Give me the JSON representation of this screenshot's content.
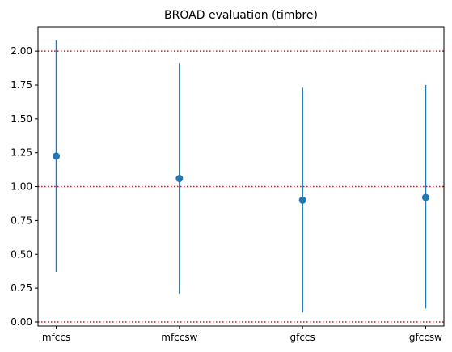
{
  "chart_data": {
    "type": "scatter",
    "title": "BROAD evaluation (timbre)",
    "xlabel": "",
    "ylabel": "",
    "categories": [
      "mfccs",
      "mfccsw",
      "gfccs",
      "gfccsw"
    ],
    "series": [
      {
        "values": [
          1.225,
          1.06,
          0.9,
          0.92
        ],
        "error_low": [
          0.37,
          0.21,
          0.07,
          0.1
        ],
        "error_high": [
          2.08,
          1.91,
          1.73,
          1.75
        ],
        "color": "#1f77b4"
      }
    ],
    "reference_lines": [
      {
        "y": 0.0,
        "color": "#ff0000",
        "style": "dotted"
      },
      {
        "y": 1.0,
        "color": "#ff0000",
        "style": "dotted"
      },
      {
        "y": 2.0,
        "color": "#ff0000",
        "style": "dotted"
      }
    ],
    "ylim": [
      -0.03,
      2.18
    ],
    "yticks": [
      0.0,
      0.25,
      0.5,
      0.75,
      1.0,
      1.25,
      1.5,
      1.75,
      2.0
    ],
    "ytick_labels": [
      "0.00",
      "0.25",
      "0.50",
      "0.75",
      "1.00",
      "1.25",
      "1.50",
      "1.75",
      "2.00"
    ],
    "grid": false
  }
}
